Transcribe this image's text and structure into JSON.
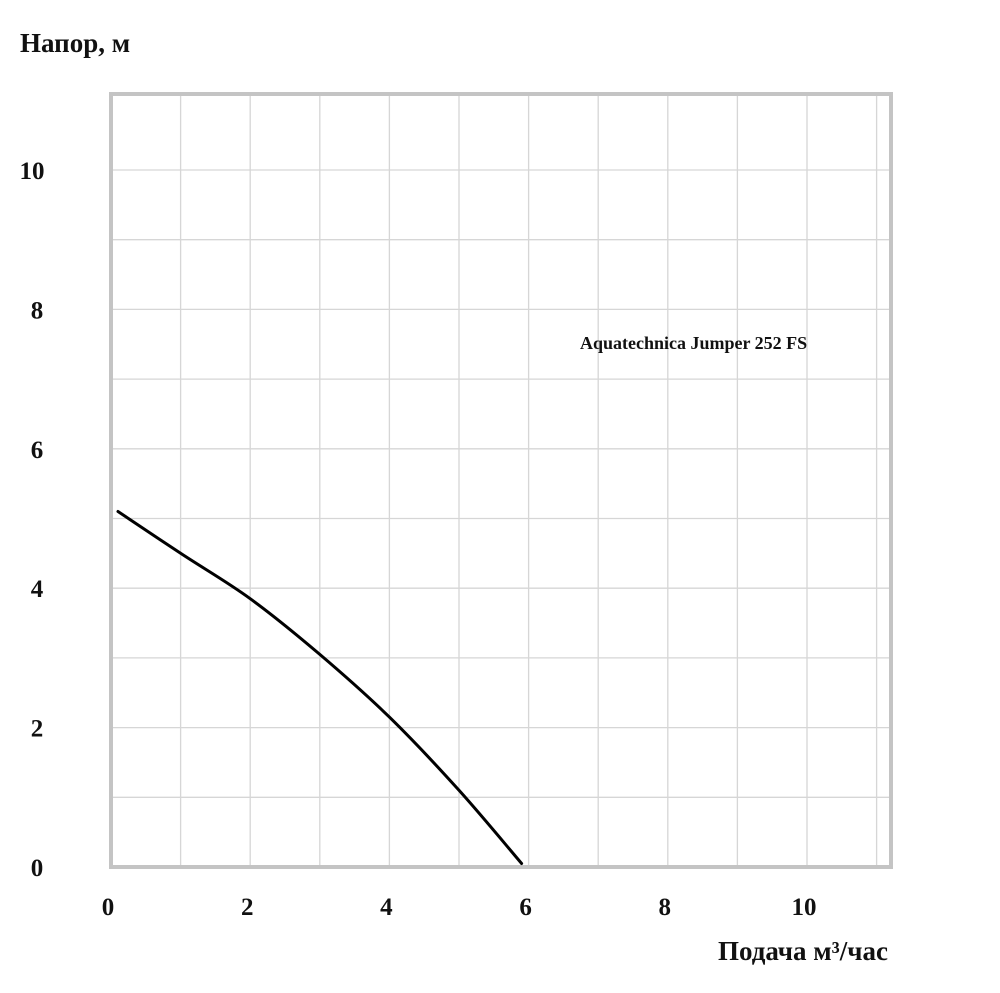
{
  "chart_data": {
    "type": "line",
    "ylabel": "Напор, м",
    "xlabel": "Подача м³/час",
    "annotation": "Aquatechnica Jumper 252 FS",
    "xlim": [
      0,
      11.2
    ],
    "ylim": [
      0,
      11
    ],
    "x_ticks": [
      0,
      2,
      4,
      6,
      8,
      10
    ],
    "y_ticks": [
      0,
      2,
      4,
      6,
      8,
      10
    ],
    "grid_step": 1,
    "grid": true,
    "legend": "none",
    "series": [
      {
        "color": "#000000",
        "points": [
          [
            0.1,
            5.1
          ],
          [
            1.0,
            4.5
          ],
          [
            2.0,
            3.85
          ],
          [
            3.0,
            3.05
          ],
          [
            4.0,
            2.15
          ],
          [
            5.0,
            1.1
          ],
          [
            5.9,
            0.05
          ]
        ]
      }
    ],
    "colors": {
      "grid": "#d6d6d6",
      "frame": "#c4c4c4",
      "line": "#000000"
    }
  }
}
